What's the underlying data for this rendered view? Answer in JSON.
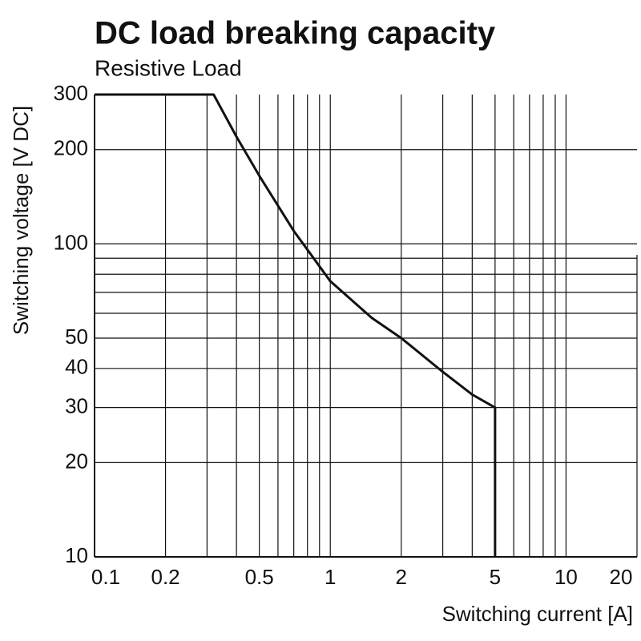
{
  "chart_data": {
    "type": "line",
    "title": "DC load breaking capacity",
    "subtitle": "Resistive Load",
    "x_label": "Switching current [A]",
    "y_label": "Switching voltage [V DC]",
    "x_scale": "log",
    "y_scale": "log",
    "xlim": [
      0.1,
      20
    ],
    "ylim": [
      10,
      300
    ],
    "xticks": [
      0.1,
      0.2,
      0.5,
      1,
      2,
      5,
      10,
      20
    ],
    "yticks": [
      10,
      20,
      30,
      40,
      50,
      100,
      200,
      300
    ],
    "xgrid": [
      0.2,
      0.3,
      0.4,
      0.5,
      0.6,
      0.7,
      0.8,
      0.9,
      1,
      2,
      3,
      4,
      5,
      6,
      7,
      8,
      9,
      10
    ],
    "ygrid": [
      20,
      30,
      40,
      50,
      60,
      70,
      80,
      90,
      100,
      200
    ],
    "series": [
      {
        "color": "#111111",
        "x": [
          0.1,
          0.32,
          0.4,
          0.5,
          0.7,
          1,
          1.5,
          2,
          3,
          4,
          5,
          5
        ],
        "values": [
          300,
          300,
          220,
          165,
          110,
          76,
          58,
          50,
          39,
          33,
          30,
          10
        ]
      }
    ]
  }
}
